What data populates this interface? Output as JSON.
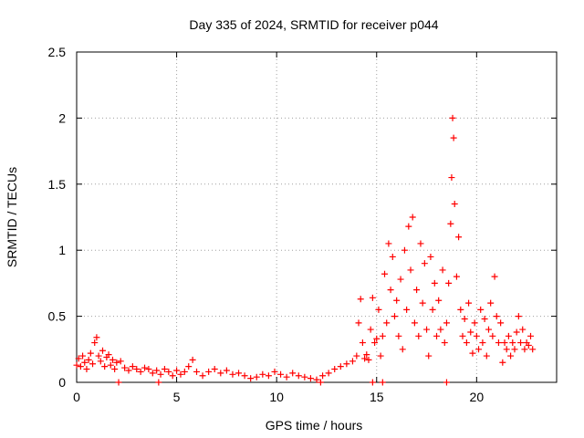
{
  "chart_data": {
    "type": "scatter",
    "title": "Day 335 of 2024, SRMTID for receiver p044",
    "xlabel": "GPS time / hours",
    "ylabel": "SRMTID / TECUs",
    "xlim": [
      0,
      24
    ],
    "ylim": [
      0,
      2.5
    ],
    "xticks": [
      0,
      5,
      10,
      15,
      20
    ],
    "xtick_labels": [
      "0",
      "5",
      "10",
      "15",
      "20"
    ],
    "yticks": [
      0,
      0.5,
      1,
      1.5,
      2,
      2.5
    ],
    "ytick_labels": [
      "0",
      "0.5",
      "1",
      "1.5",
      "2",
      "2.5"
    ],
    "grid": true,
    "marker": "+",
    "series_color": "#ff0000",
    "series": [
      {
        "name": "SRMTID",
        "points": [
          [
            0.0,
            0.13
          ],
          [
            0.1,
            0.18
          ],
          [
            0.2,
            0.12
          ],
          [
            0.3,
            0.2
          ],
          [
            0.4,
            0.15
          ],
          [
            0.5,
            0.1
          ],
          [
            0.6,
            0.17
          ],
          [
            0.7,
            0.22
          ],
          [
            0.8,
            0.14
          ],
          [
            0.9,
            0.3
          ],
          [
            1.0,
            0.34
          ],
          [
            1.1,
            0.2
          ],
          [
            1.2,
            0.16
          ],
          [
            1.3,
            0.24
          ],
          [
            1.4,
            0.12
          ],
          [
            1.5,
            0.19
          ],
          [
            1.6,
            0.21
          ],
          [
            1.7,
            0.13
          ],
          [
            1.8,
            0.17
          ],
          [
            1.9,
            0.1
          ],
          [
            2.0,
            0.15
          ],
          [
            2.2,
            0.16
          ],
          [
            2.4,
            0.11
          ],
          [
            2.6,
            0.09
          ],
          [
            2.8,
            0.12
          ],
          [
            3.0,
            0.1
          ],
          [
            3.2,
            0.08
          ],
          [
            3.4,
            0.11
          ],
          [
            3.6,
            0.1
          ],
          [
            3.8,
            0.07
          ],
          [
            4.0,
            0.09
          ],
          [
            4.2,
            0.06
          ],
          [
            4.4,
            0.1
          ],
          [
            4.6,
            0.08
          ],
          [
            4.8,
            0.05
          ],
          [
            5.0,
            0.09
          ],
          [
            5.2,
            0.06
          ],
          [
            5.4,
            0.08
          ],
          [
            5.6,
            0.12
          ],
          [
            5.8,
            0.17
          ],
          [
            6.0,
            0.08
          ],
          [
            6.3,
            0.05
          ],
          [
            6.6,
            0.08
          ],
          [
            6.9,
            0.1
          ],
          [
            7.2,
            0.07
          ],
          [
            7.5,
            0.09
          ],
          [
            7.8,
            0.06
          ],
          [
            8.1,
            0.07
          ],
          [
            8.4,
            0.05
          ],
          [
            8.7,
            0.03
          ],
          [
            9.0,
            0.04
          ],
          [
            9.3,
            0.06
          ],
          [
            9.6,
            0.05
          ],
          [
            9.9,
            0.08
          ],
          [
            10.2,
            0.06
          ],
          [
            10.5,
            0.04
          ],
          [
            10.8,
            0.07
          ],
          [
            11.1,
            0.05
          ],
          [
            11.4,
            0.04
          ],
          [
            11.7,
            0.03
          ],
          [
            12.0,
            0.02
          ],
          [
            12.3,
            0.05
          ],
          [
            12.6,
            0.07
          ],
          [
            12.9,
            0.1
          ],
          [
            13.2,
            0.12
          ],
          [
            13.5,
            0.14
          ],
          [
            13.8,
            0.16
          ],
          [
            14.0,
            0.2
          ],
          [
            14.1,
            0.45
          ],
          [
            14.2,
            0.63
          ],
          [
            14.3,
            0.3
          ],
          [
            14.4,
            0.18
          ],
          [
            14.5,
            0.21
          ],
          [
            14.6,
            0.17
          ],
          [
            14.7,
            0.4
          ],
          [
            14.8,
            0.64
          ],
          [
            14.9,
            0.3
          ],
          [
            15.0,
            0.33
          ],
          [
            15.1,
            0.55
          ],
          [
            15.2,
            0.2
          ],
          [
            15.3,
            0.35
          ],
          [
            15.4,
            0.82
          ],
          [
            15.5,
            0.45
          ],
          [
            15.6,
            1.05
          ],
          [
            15.7,
            0.7
          ],
          [
            15.8,
            0.95
          ],
          [
            15.9,
            0.5
          ],
          [
            16.0,
            0.62
          ],
          [
            16.1,
            0.35
          ],
          [
            16.2,
            0.78
          ],
          [
            16.3,
            0.25
          ],
          [
            16.4,
            1.0
          ],
          [
            16.5,
            0.55
          ],
          [
            16.6,
            1.18
          ],
          [
            16.7,
            0.85
          ],
          [
            16.8,
            1.25
          ],
          [
            16.9,
            0.45
          ],
          [
            17.0,
            0.7
          ],
          [
            17.1,
            0.35
          ],
          [
            17.2,
            1.05
          ],
          [
            17.3,
            0.6
          ],
          [
            17.4,
            0.9
          ],
          [
            17.5,
            0.4
          ],
          [
            17.6,
            0.2
          ],
          [
            17.7,
            0.95
          ],
          [
            17.8,
            0.55
          ],
          [
            17.9,
            0.75
          ],
          [
            18.0,
            0.35
          ],
          [
            18.1,
            0.62
          ],
          [
            18.2,
            0.4
          ],
          [
            18.3,
            0.85
          ],
          [
            18.4,
            0.3
          ],
          [
            18.5,
            0.45
          ],
          [
            18.6,
            0.75
          ],
          [
            18.7,
            1.2
          ],
          [
            18.75,
            1.55
          ],
          [
            18.8,
            2.0
          ],
          [
            18.85,
            1.85
          ],
          [
            18.9,
            1.35
          ],
          [
            19.0,
            0.8
          ],
          [
            19.1,
            1.1
          ],
          [
            19.2,
            0.55
          ],
          [
            19.3,
            0.35
          ],
          [
            19.4,
            0.48
          ],
          [
            19.5,
            0.3
          ],
          [
            19.6,
            0.6
          ],
          [
            19.7,
            0.38
          ],
          [
            19.8,
            0.22
          ],
          [
            19.9,
            0.45
          ],
          [
            20.0,
            0.35
          ],
          [
            20.1,
            0.25
          ],
          [
            20.2,
            0.55
          ],
          [
            20.3,
            0.3
          ],
          [
            20.4,
            0.48
          ],
          [
            20.5,
            0.2
          ],
          [
            20.6,
            0.4
          ],
          [
            20.7,
            0.6
          ],
          [
            20.8,
            0.35
          ],
          [
            20.9,
            0.8
          ],
          [
            21.0,
            0.5
          ],
          [
            21.1,
            0.3
          ],
          [
            21.2,
            0.45
          ],
          [
            21.3,
            0.15
          ],
          [
            21.4,
            0.3
          ],
          [
            21.5,
            0.25
          ],
          [
            21.6,
            0.35
          ],
          [
            21.7,
            0.2
          ],
          [
            21.8,
            0.3
          ],
          [
            21.9,
            0.25
          ],
          [
            22.0,
            0.38
          ],
          [
            22.1,
            0.5
          ],
          [
            22.2,
            0.3
          ],
          [
            22.3,
            0.4
          ],
          [
            22.4,
            0.25
          ],
          [
            22.5,
            0.3
          ],
          [
            22.6,
            0.28
          ],
          [
            22.7,
            0.35
          ],
          [
            22.8,
            0.25
          ],
          [
            2.1,
            0.0
          ],
          [
            4.1,
            0.0
          ],
          [
            12.2,
            0.0
          ],
          [
            14.8,
            0.0
          ],
          [
            15.3,
            0.0
          ],
          [
            18.5,
            0.0
          ]
        ]
      }
    ]
  }
}
